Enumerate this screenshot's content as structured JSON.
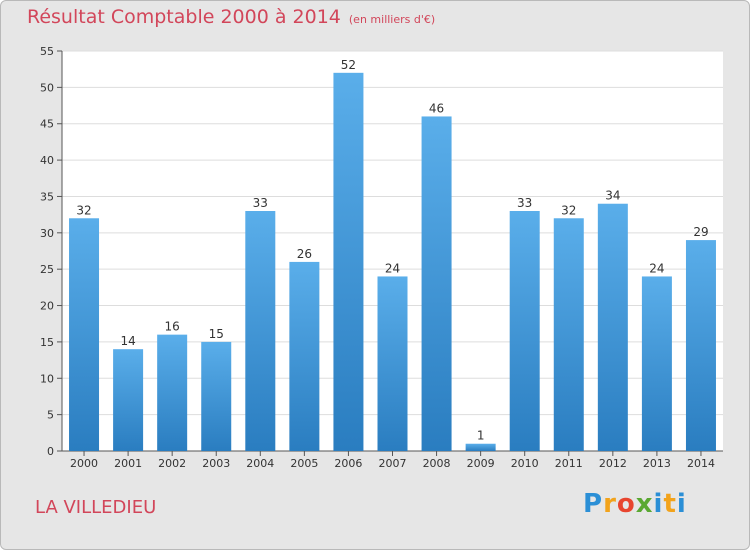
{
  "title": "Résultat Comptable 2000 à 2014",
  "unit_note": "(en milliers d'€)",
  "location": "LA VILLEDIEU",
  "logo": {
    "text": "Proxiti",
    "letters": [
      {
        "ch": "P",
        "color": "#2b8fd6"
      },
      {
        "ch": "r",
        "color": "#f2a31b"
      },
      {
        "ch": "o",
        "color": "#e8452f"
      },
      {
        "ch": "x",
        "color": "#5aa832"
      },
      {
        "ch": "i",
        "color": "#2b8fd6"
      },
      {
        "ch": "t",
        "color": "#f2a31b"
      },
      {
        "ch": "i",
        "color": "#2b8fd6"
      }
    ]
  },
  "colors": {
    "title": "#d2465a",
    "bar_top": "#5aaeea",
    "bar_bottom": "#2a7dc0",
    "plot_bg": "#ffffff",
    "grid": "#dddddd"
  },
  "chart_data": {
    "type": "bar",
    "title": "Résultat Comptable 2000 à 2014",
    "xlabel": "",
    "ylabel": "",
    "categories": [
      "2000",
      "2001",
      "2002",
      "2003",
      "2004",
      "2005",
      "2006",
      "2007",
      "2008",
      "2009",
      "2010",
      "2011",
      "2012",
      "2013",
      "2014"
    ],
    "values": [
      32,
      14,
      16,
      15,
      33,
      26,
      52,
      24,
      46,
      1,
      33,
      32,
      34,
      24,
      29
    ],
    "ylim": [
      0,
      55
    ],
    "yticks": [
      0,
      5,
      10,
      15,
      20,
      25,
      30,
      35,
      40,
      45,
      50,
      55
    ],
    "grid": true
  }
}
